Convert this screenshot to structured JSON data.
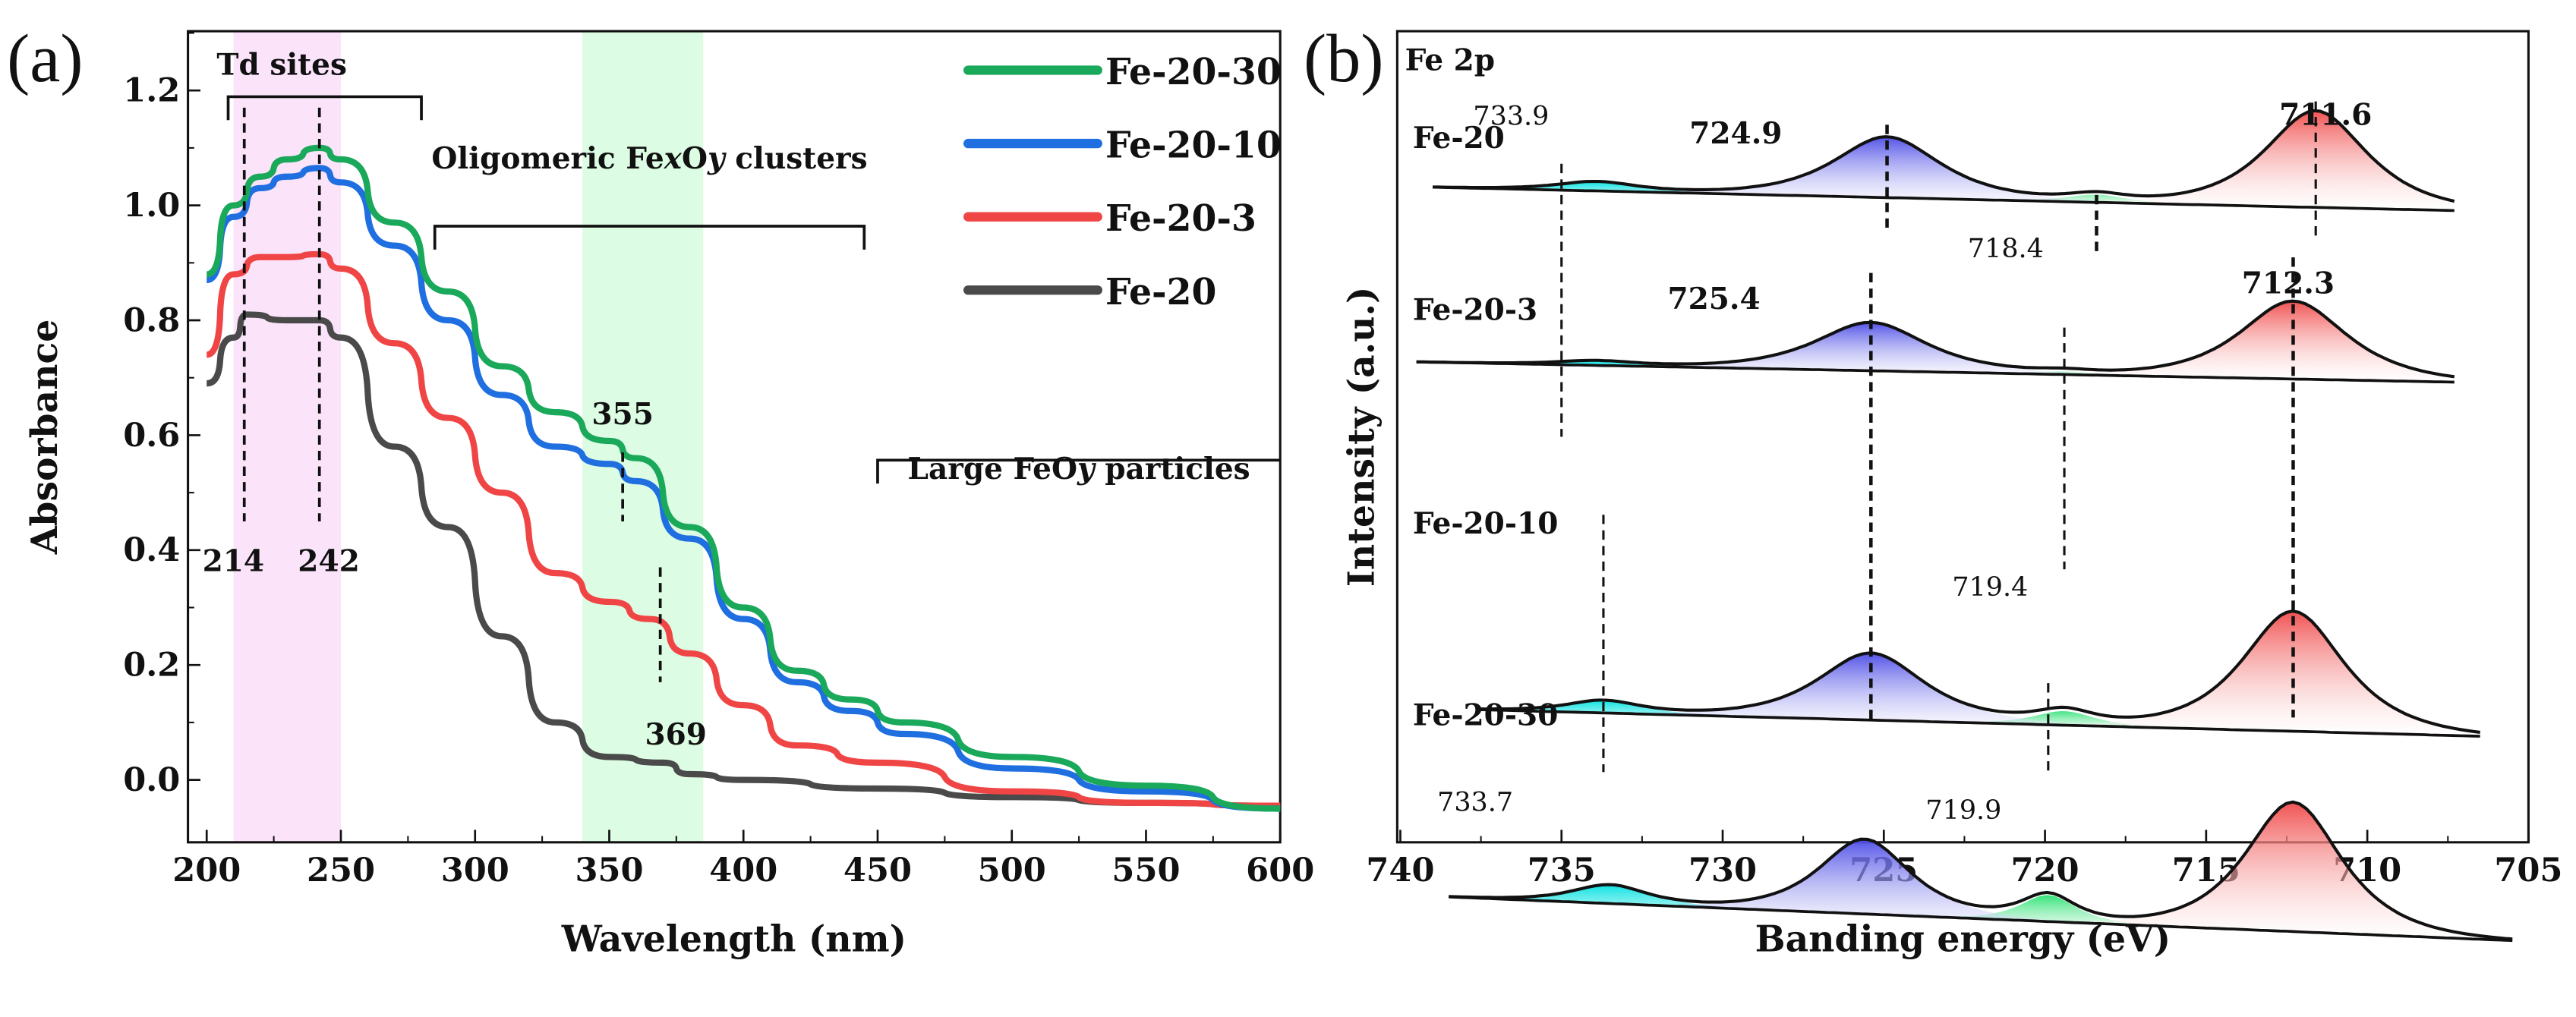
{
  "chart_data": [
    {
      "type": "line",
      "panel_label": "(a)",
      "xlabel": "Wavelength (nm)",
      "ylabel": "Absorbance",
      "xlim": [
        200,
        600
      ],
      "ylim": [
        -0.1,
        1.3
      ],
      "xticks": [
        "200",
        "250",
        "300",
        "350",
        "400",
        "450",
        "500",
        "550",
        "600"
      ],
      "yticks": [
        "0.0",
        "0.2",
        "0.4",
        "0.6",
        "0.8",
        "1.0",
        "1.2"
      ],
      "legend_position": "top-right",
      "series": [
        {
          "name": "Fe-20-30",
          "color": "#1aa85a",
          "x": [
            200,
            210,
            220,
            230,
            242,
            250,
            270,
            290,
            310,
            330,
            350,
            360,
            380,
            400,
            420,
            440,
            460,
            500,
            550,
            600
          ],
          "y": [
            0.88,
            1.0,
            1.05,
            1.08,
            1.1,
            1.08,
            0.97,
            0.85,
            0.72,
            0.64,
            0.59,
            0.56,
            0.44,
            0.3,
            0.19,
            0.14,
            0.1,
            0.04,
            -0.01,
            -0.05
          ]
        },
        {
          "name": "Fe-20-10",
          "color": "#1f6fe0",
          "x": [
            200,
            210,
            220,
            230,
            242,
            250,
            270,
            290,
            310,
            330,
            350,
            360,
            380,
            400,
            420,
            440,
            460,
            500,
            550,
            600
          ],
          "y": [
            0.87,
            0.98,
            1.03,
            1.05,
            1.065,
            1.04,
            0.93,
            0.8,
            0.67,
            0.58,
            0.55,
            0.52,
            0.42,
            0.28,
            0.17,
            0.12,
            0.08,
            0.02,
            -0.02,
            -0.05
          ]
        },
        {
          "name": "Fe-20-3",
          "color": "#f04545",
          "x": [
            200,
            210,
            220,
            230,
            242,
            250,
            270,
            290,
            310,
            330,
            350,
            365,
            380,
            400,
            420,
            450,
            500,
            550,
            600
          ],
          "y": [
            0.74,
            0.88,
            0.91,
            0.91,
            0.915,
            0.89,
            0.76,
            0.63,
            0.5,
            0.36,
            0.31,
            0.28,
            0.22,
            0.13,
            0.06,
            0.03,
            -0.02,
            -0.04,
            -0.045
          ]
        },
        {
          "name": "Fe-20",
          "color": "#4a4a4a",
          "x": [
            200,
            210,
            215,
            230,
            242,
            250,
            270,
            290,
            310,
            330,
            350,
            370,
            380,
            400,
            450,
            500,
            550,
            600
          ],
          "y": [
            0.69,
            0.77,
            0.81,
            0.8,
            0.8,
            0.77,
            0.58,
            0.44,
            0.25,
            0.1,
            0.04,
            0.03,
            0.01,
            0.0,
            -0.015,
            -0.03,
            -0.04,
            -0.045
          ]
        }
      ],
      "bands": [
        {
          "name": "td-band",
          "range": [
            210,
            250
          ],
          "color": "#fbe3fa"
        },
        {
          "name": "cluster-band",
          "range": [
            340,
            385
          ],
          "color": "#dcfce3"
        }
      ],
      "annotations": {
        "td_sites": {
          "label": "Td sites",
          "range": [
            208,
            280
          ]
        },
        "oligomeric": {
          "label_pre": "Oligomeric Fe",
          "sub_x": "x",
          "mid": "O",
          "sub_y": "y",
          "label_post": " clusters",
          "range": [
            285,
            445
          ]
        },
        "large": {
          "label_pre": "Large FeO",
          "sub_y": "y",
          "label_post": "  particles",
          "range": [
            450,
            600
          ]
        },
        "markers": [
          {
            "label": "214",
            "x": 214,
            "y_top": 1.17,
            "y_bottom": 0.45
          },
          {
            "label": "242",
            "x": 242,
            "y_top": 1.17,
            "y_bottom": 0.45
          },
          {
            "label": "355",
            "x": 355,
            "y_top": 0.57,
            "y_bottom": 0.45
          },
          {
            "label": "369",
            "x": 369,
            "y_top": 0.37,
            "y_bottom": 0.17
          }
        ]
      }
    },
    {
      "type": "line",
      "panel_label": "(b)",
      "title": "Fe 2p",
      "xlabel": "Banding energy (eV)",
      "ylabel": "Intensity (a.u.)",
      "xlim": [
        740,
        705
      ],
      "xticks": [
        "740",
        "735",
        "730",
        "725",
        "720",
        "715",
        "710",
        "705"
      ],
      "colors": {
        "fe2p32": "#f04a4a",
        "fe2p12": "#4a4ae6",
        "sat1": "#00e0e0",
        "sat2": "#28e070"
      },
      "samples": [
        {
          "name": "Fe-20",
          "offset": 4.2,
          "slope": 0.15,
          "xrange": [
            739,
            707.3
          ],
          "peaks": [
            {
              "c": 711.6,
              "h": 0.62,
              "w": 2.0,
              "kind": "fe2p32"
            },
            {
              "c": 724.9,
              "h": 0.39,
              "w": 2.1,
              "kind": "fe2p12"
            },
            {
              "c": 733.9,
              "h": 0.06,
              "w": 1.6,
              "kind": "sat1"
            },
            {
              "c": 718.4,
              "h": 0.05,
              "w": 1.2,
              "kind": "sat2"
            }
          ]
        },
        {
          "name": "Fe-20-3",
          "offset": 3.08,
          "slope": 0.13,
          "xrange": [
            739.5,
            707.3
          ],
          "peaks": [
            {
              "c": 712.3,
              "h": 0.5,
              "w": 2.1,
              "kind": "fe2p32"
            },
            {
              "c": 725.4,
              "h": 0.31,
              "w": 2.2,
              "kind": "fe2p12"
            },
            {
              "c": 733.9,
              "h": 0.03,
              "w": 1.6,
              "kind": "sat1"
            },
            {
              "c": 719.4,
              "h": 0.02,
              "w": 1.2,
              "kind": "sat2"
            }
          ]
        },
        {
          "name": "Fe-20-10",
          "offset": 0.85,
          "slope": 0.17,
          "xrange": [
            737.5,
            706.5
          ],
          "peaks": [
            {
              "c": 712.3,
              "h": 0.77,
              "w": 2.0,
              "kind": "fe2p32"
            },
            {
              "c": 725.4,
              "h": 0.43,
              "w": 2.1,
              "kind": "fe2p12"
            },
            {
              "c": 733.7,
              "h": 0.08,
              "w": 1.5,
              "kind": "sat1"
            },
            {
              "c": 719.4,
              "h": 0.09,
              "w": 1.2,
              "kind": "sat2"
            }
          ]
        },
        {
          "name": "Fe-20-30",
          "offset": -0.35,
          "slope": 0.28,
          "xrange": [
            738.5,
            705.5
          ],
          "peaks": [
            {
              "c": 712.3,
              "h": 0.83,
              "w": 1.9,
              "kind": "fe2p32"
            },
            {
              "c": 725.6,
              "h": 0.48,
              "w": 1.8,
              "kind": "fe2p12"
            },
            {
              "c": 733.5,
              "h": 0.12,
              "w": 1.5,
              "kind": "sat1"
            },
            {
              "c": 719.9,
              "h": 0.17,
              "w": 1.1,
              "kind": "sat2"
            }
          ]
        }
      ],
      "peak_labels": [
        {
          "label": "733.9",
          "x": 733.9,
          "bold": false
        },
        {
          "label": "724.9",
          "x": 724.9,
          "bold": true
        },
        {
          "label": "711.6",
          "x": 711.6,
          "bold": true
        },
        {
          "label": "718.4",
          "x": 718.4,
          "bold": false
        },
        {
          "label": "725.4",
          "x": 725.4,
          "bold": true
        },
        {
          "label": "712.3",
          "x": 712.3,
          "bold": true
        },
        {
          "label": "719.4",
          "x": 719.4,
          "bold": false
        },
        {
          "label": "733.7",
          "x": 733.7,
          "bold": false
        },
        {
          "label": "719.9",
          "x": 719.9,
          "bold": false
        }
      ]
    }
  ]
}
